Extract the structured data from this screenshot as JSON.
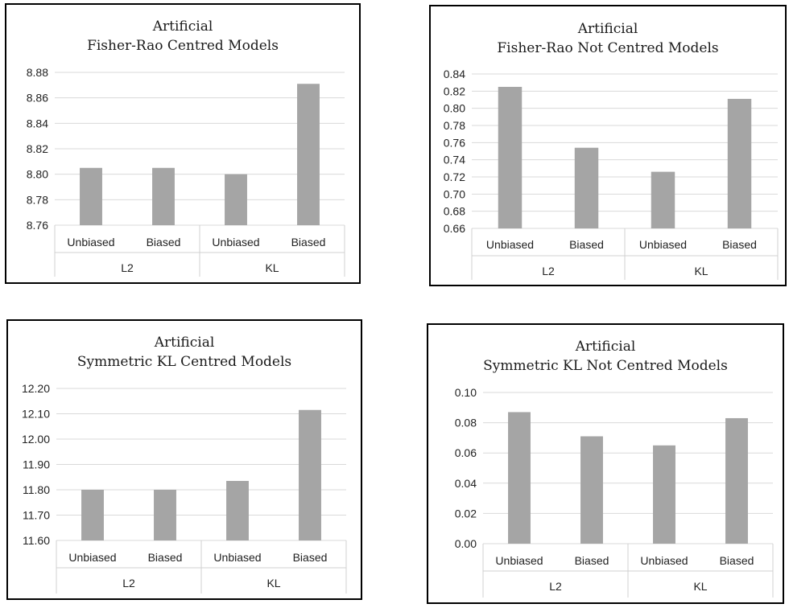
{
  "charts": [
    {
      "name": "fr-centred",
      "chart_data": {
        "type": "bar",
        "title_lines": [
          "Artificial",
          "Fisher-Rao Centred Models"
        ],
        "categories": [
          "Unbiased",
          "Biased",
          "Unbiased",
          "Biased"
        ],
        "groups": [
          {
            "label": "L2",
            "span": 2
          },
          {
            "label": "KL",
            "span": 2
          }
        ],
        "values": [
          8.805,
          8.805,
          8.8,
          8.871
        ],
        "ylim": [
          8.76,
          8.88
        ],
        "yticks": [
          "8.76",
          "8.78",
          "8.80",
          "8.82",
          "8.84",
          "8.86",
          "8.88"
        ],
        "grid": true,
        "color": "#a5a5a5"
      }
    },
    {
      "name": "fr-not-centred",
      "chart_data": {
        "type": "bar",
        "title_lines": [
          "Artificial",
          "Fisher-Rao Not Centred Models"
        ],
        "categories": [
          "Unbiased",
          "Biased",
          "Unbiased",
          "Biased"
        ],
        "groups": [
          {
            "label": "L2",
            "span": 2
          },
          {
            "label": "KL",
            "span": 2
          }
        ],
        "values": [
          0.825,
          0.754,
          0.726,
          0.811
        ],
        "ylim": [
          0.66,
          0.84
        ],
        "yticks": [
          "0.66",
          "0.68",
          "0.70",
          "0.72",
          "0.74",
          "0.76",
          "0.78",
          "0.80",
          "0.82",
          "0.84"
        ],
        "grid": true,
        "color": "#a5a5a5"
      }
    },
    {
      "name": "skl-centred",
      "chart_data": {
        "type": "bar",
        "title_lines": [
          "Artificial",
          "Symmetric KL Centred Models"
        ],
        "categories": [
          "Unbiased",
          "Biased",
          "Unbiased",
          "Biased"
        ],
        "groups": [
          {
            "label": "L2",
            "span": 2
          },
          {
            "label": "KL",
            "span": 2
          }
        ],
        "values": [
          11.8,
          11.8,
          11.835,
          12.115
        ],
        "ylim": [
          11.6,
          12.2
        ],
        "yticks": [
          "11.60",
          "11.70",
          "11.80",
          "11.90",
          "12.00",
          "12.10",
          "12.20"
        ],
        "grid": true,
        "color": "#a5a5a5"
      }
    },
    {
      "name": "skl-not-centred",
      "chart_data": {
        "type": "bar",
        "title_lines": [
          "Artificial",
          "Symmetric KL Not Centred Models"
        ],
        "categories": [
          "Unbiased",
          "Biased",
          "Unbiased",
          "Biased"
        ],
        "groups": [
          {
            "label": "L2",
            "span": 2
          },
          {
            "label": "KL",
            "span": 2
          }
        ],
        "values": [
          0.087,
          0.071,
          0.065,
          0.083
        ],
        "ylim": [
          0.0,
          0.1
        ],
        "yticks": [
          "0.00",
          "0.02",
          "0.04",
          "0.06",
          "0.08",
          "0.10"
        ],
        "grid": true,
        "color": "#a5a5a5"
      }
    }
  ]
}
